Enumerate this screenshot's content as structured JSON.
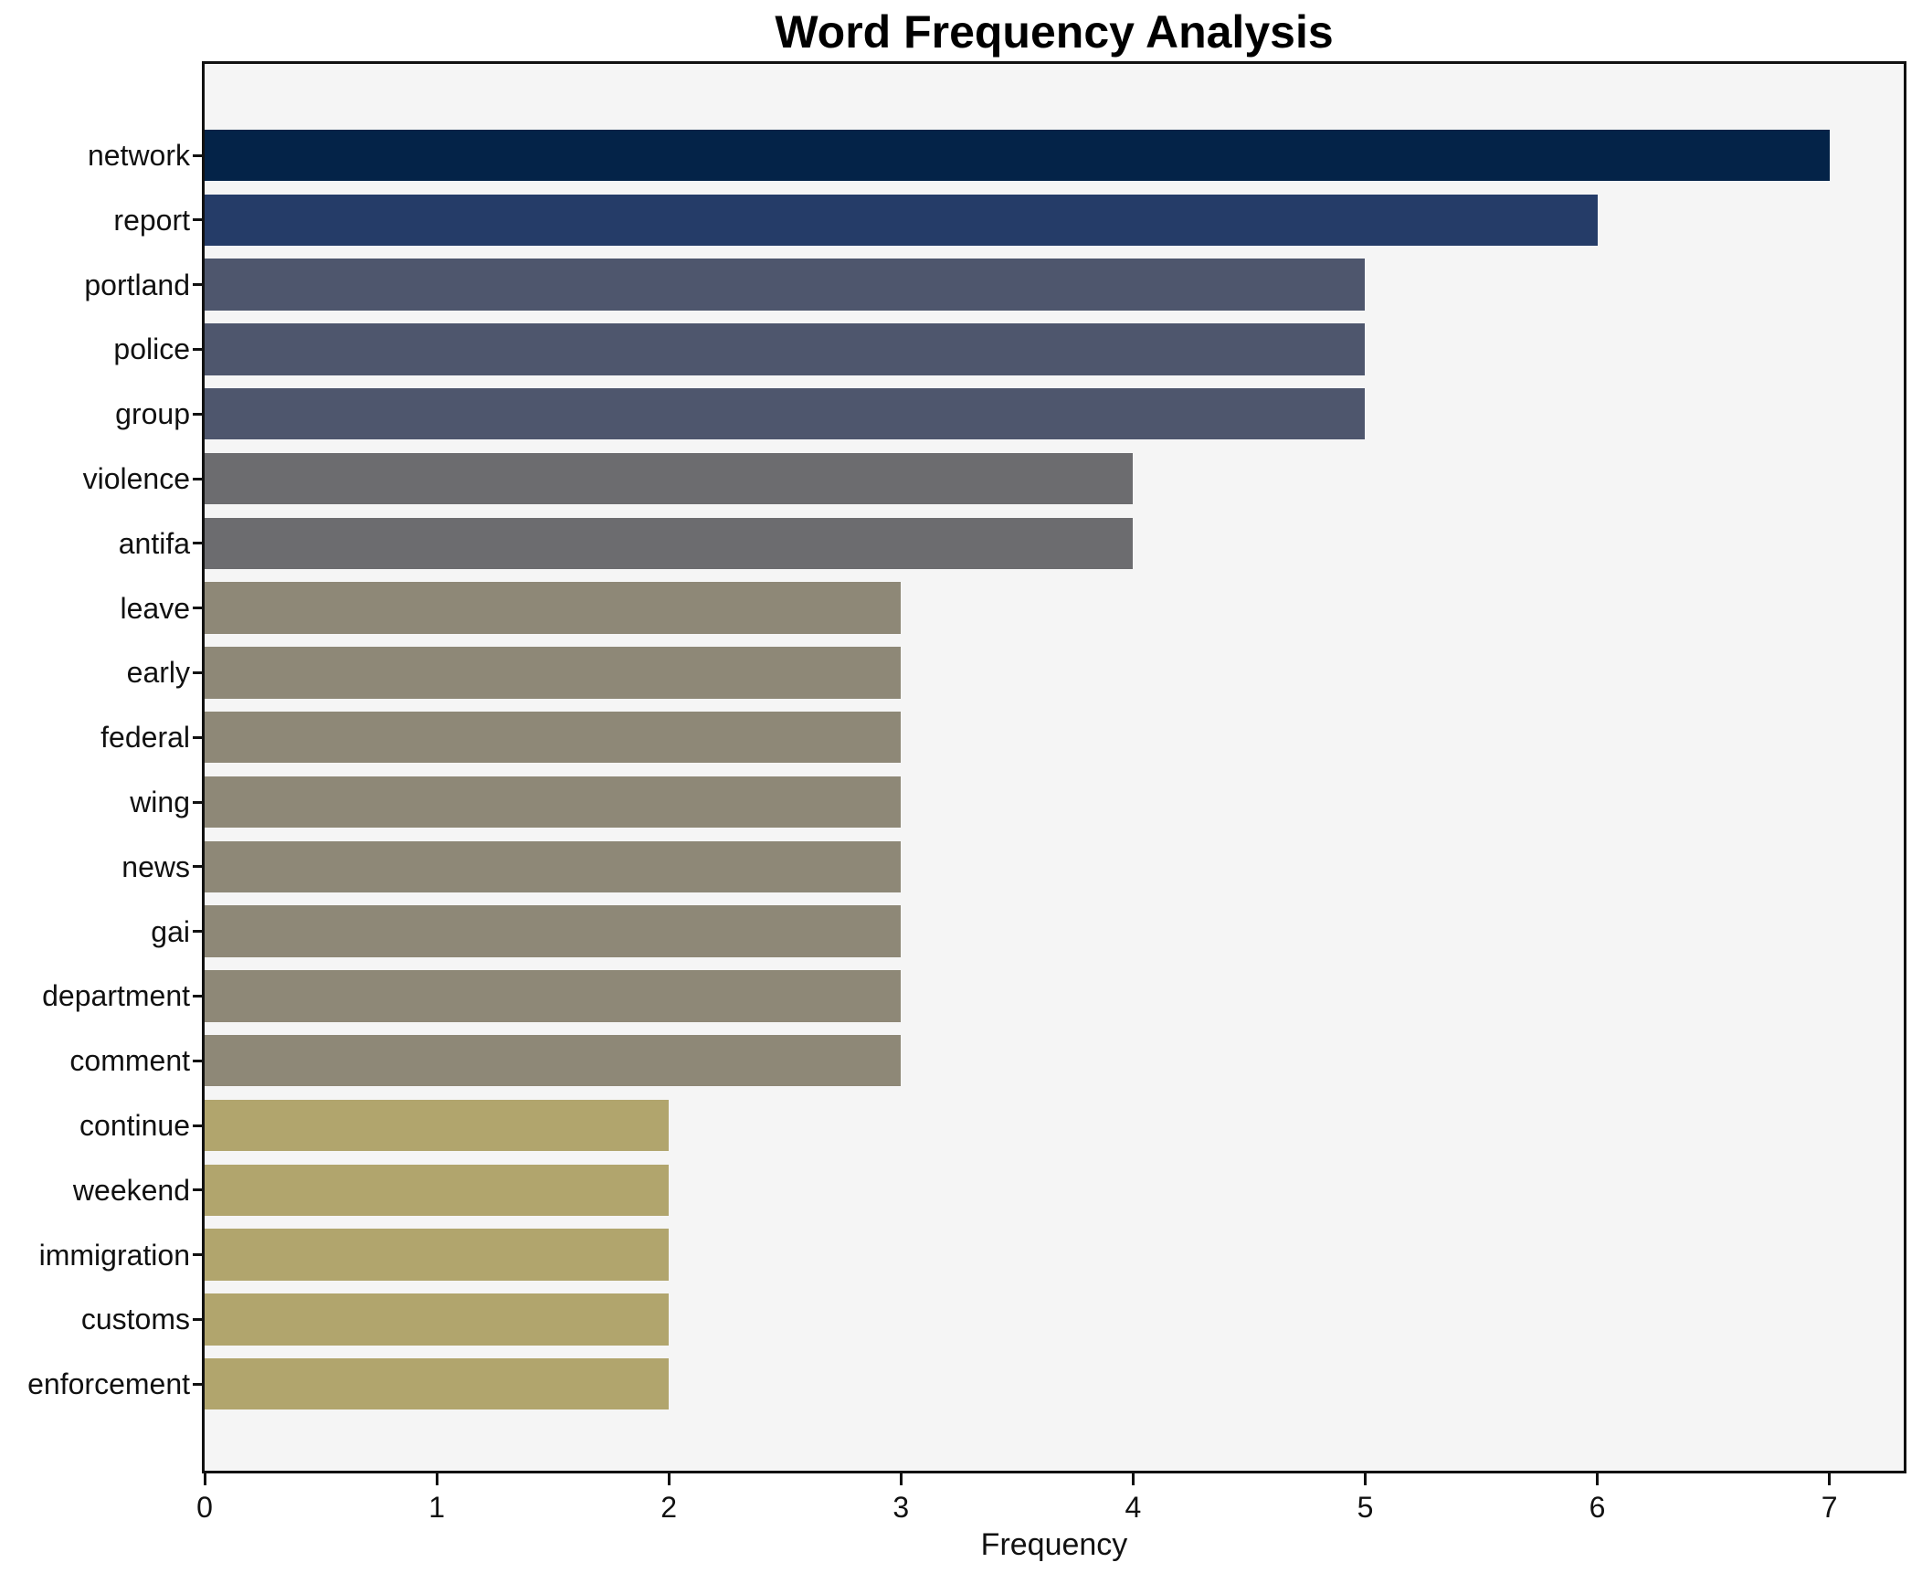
{
  "title": "Word Frequency Analysis",
  "chart_data": {
    "type": "bar",
    "orientation": "horizontal",
    "title": "Word Frequency Analysis",
    "xlabel": "Frequency",
    "ylabel": "",
    "categories": [
      "network",
      "report",
      "portland",
      "police",
      "group",
      "violence",
      "antifa",
      "leave",
      "early",
      "federal",
      "wing",
      "news",
      "gai",
      "department",
      "comment",
      "continue",
      "weekend",
      "immigration",
      "customs",
      "enforcement"
    ],
    "values": [
      7,
      6,
      5,
      5,
      5,
      4,
      4,
      3,
      3,
      3,
      3,
      3,
      3,
      3,
      3,
      2,
      2,
      2,
      2,
      2
    ],
    "bar_colors": [
      "#042348",
      "#253c68",
      "#4e566d",
      "#4e566d",
      "#4e566d",
      "#6c6c6f",
      "#6c6c6f",
      "#8e8877",
      "#8e8877",
      "#8e8877",
      "#8e8877",
      "#8e8877",
      "#8e8877",
      "#8e8877",
      "#8e8877",
      "#b1a56d",
      "#b1a56d",
      "#b1a56d",
      "#b1a56d",
      "#b1a56d"
    ],
    "xticks": [
      0,
      1,
      2,
      3,
      4,
      5,
      6,
      7
    ],
    "xlim": [
      0,
      7.32
    ],
    "grid": false,
    "legend_position": "none",
    "plot_background": "#f5f5f5",
    "figure_background": "#ffffff",
    "spine_color": "#111111",
    "text_color": "#111111"
  }
}
